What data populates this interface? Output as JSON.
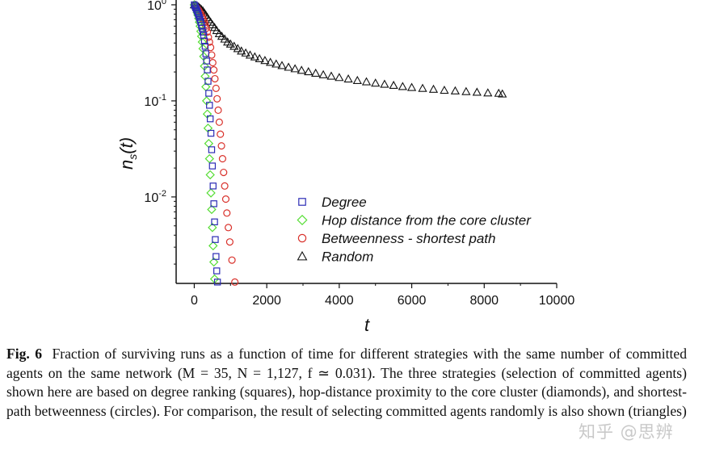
{
  "chart_data": {
    "type": "scatter",
    "xlabel": "t",
    "ylabel": "n_s(t)",
    "xlim": [
      -500,
      10000
    ],
    "ylim_log10": [
      -2.9,
      0.05
    ],
    "y_scale": "log",
    "x_ticks": [
      0,
      2000,
      4000,
      6000,
      8000,
      10000
    ],
    "y_ticks": [
      {
        "base": "10",
        "exp": "-2",
        "value": 0.01
      },
      {
        "base": "10",
        "exp": "-1",
        "value": 0.1
      },
      {
        "base": "10",
        "exp": "0",
        "value": 1
      }
    ],
    "legend_position": "lower-right",
    "series": [
      {
        "name": "Degree",
        "marker": "square",
        "color": "#2b2bb5",
        "points": [
          [
            0,
            1
          ],
          [
            20,
            0.97
          ],
          [
            40,
            0.93
          ],
          [
            60,
            0.9
          ],
          [
            80,
            0.86
          ],
          [
            100,
            0.82
          ],
          [
            120,
            0.78
          ],
          [
            140,
            0.74
          ],
          [
            160,
            0.7
          ],
          [
            180,
            0.66
          ],
          [
            200,
            0.61
          ],
          [
            220,
            0.57
          ],
          [
            240,
            0.52
          ],
          [
            260,
            0.48
          ],
          [
            280,
            0.42
          ],
          [
            300,
            0.37
          ],
          [
            320,
            0.31
          ],
          [
            340,
            0.26
          ],
          [
            360,
            0.21
          ],
          [
            380,
            0.16
          ],
          [
            400,
            0.12
          ],
          [
            420,
            0.09
          ],
          [
            440,
            0.065
          ],
          [
            460,
            0.046
          ],
          [
            480,
            0.031
          ],
          [
            500,
            0.021
          ],
          [
            520,
            0.013
          ],
          [
            540,
            0.0085
          ],
          [
            560,
            0.0055
          ],
          [
            580,
            0.0036
          ],
          [
            600,
            0.0024
          ],
          [
            620,
            0.0017
          ],
          [
            640,
            0.0013
          ]
        ]
      },
      {
        "name": "Hop distance from the core cluster",
        "marker": "diamond",
        "color": "#55dd33",
        "points": [
          [
            0,
            1
          ],
          [
            20,
            0.96
          ],
          [
            40,
            0.92
          ],
          [
            60,
            0.88
          ],
          [
            80,
            0.83
          ],
          [
            100,
            0.78
          ],
          [
            120,
            0.72
          ],
          [
            140,
            0.66
          ],
          [
            160,
            0.6
          ],
          [
            180,
            0.53
          ],
          [
            200,
            0.47
          ],
          [
            220,
            0.41
          ],
          [
            240,
            0.35
          ],
          [
            260,
            0.29
          ],
          [
            280,
            0.23
          ],
          [
            300,
            0.18
          ],
          [
            320,
            0.14
          ],
          [
            340,
            0.1
          ],
          [
            360,
            0.073
          ],
          [
            380,
            0.052
          ],
          [
            400,
            0.036
          ],
          [
            420,
            0.025
          ],
          [
            440,
            0.017
          ],
          [
            460,
            0.011
          ],
          [
            480,
            0.0074
          ],
          [
            500,
            0.0048
          ],
          [
            520,
            0.0031
          ],
          [
            540,
            0.0021
          ],
          [
            560,
            0.0014
          ]
        ]
      },
      {
        "name": "Betweenness - shortest path",
        "marker": "circle",
        "color": "#d9312b",
        "points": [
          [
            0,
            1
          ],
          [
            30,
            0.97
          ],
          [
            60,
            0.94
          ],
          [
            90,
            0.91
          ],
          [
            120,
            0.88
          ],
          [
            150,
            0.84
          ],
          [
            180,
            0.8
          ],
          [
            210,
            0.76
          ],
          [
            240,
            0.72
          ],
          [
            270,
            0.67
          ],
          [
            300,
            0.62
          ],
          [
            330,
            0.57
          ],
          [
            360,
            0.52
          ],
          [
            390,
            0.46
          ],
          [
            420,
            0.41
          ],
          [
            450,
            0.36
          ],
          [
            480,
            0.3
          ],
          [
            510,
            0.25
          ],
          [
            540,
            0.21
          ],
          [
            570,
            0.17
          ],
          [
            600,
            0.135
          ],
          [
            630,
            0.105
          ],
          [
            660,
            0.08
          ],
          [
            690,
            0.06
          ],
          [
            720,
            0.045
          ],
          [
            750,
            0.034
          ],
          [
            780,
            0.025
          ],
          [
            810,
            0.018
          ],
          [
            840,
            0.013
          ],
          [
            870,
            0.0095
          ],
          [
            900,
            0.0068
          ],
          [
            940,
            0.0048
          ],
          [
            980,
            0.0034
          ],
          [
            1040,
            0.0022
          ],
          [
            1120,
            0.0013
          ]
        ]
      },
      {
        "name": "Random",
        "marker": "triangle",
        "color": "#111111",
        "points": [
          [
            0,
            1
          ],
          [
            40,
            0.99
          ],
          [
            80,
            0.97
          ],
          [
            120,
            0.95
          ],
          [
            160,
            0.92
          ],
          [
            200,
            0.89
          ],
          [
            240,
            0.86
          ],
          [
            280,
            0.82
          ],
          [
            320,
            0.78
          ],
          [
            360,
            0.74
          ],
          [
            400,
            0.7
          ],
          [
            450,
            0.66
          ],
          [
            500,
            0.62
          ],
          [
            560,
            0.58
          ],
          [
            620,
            0.54
          ],
          [
            690,
            0.5
          ],
          [
            760,
            0.47
          ],
          [
            840,
            0.44
          ],
          [
            920,
            0.41
          ],
          [
            1000,
            0.39
          ],
          [
            1100,
            0.37
          ],
          [
            1200,
            0.35
          ],
          [
            1300,
            0.33
          ],
          [
            1420,
            0.315
          ],
          [
            1540,
            0.3
          ],
          [
            1670,
            0.287
          ],
          [
            1800,
            0.275
          ],
          [
            1950,
            0.263
          ],
          [
            2100,
            0.252
          ],
          [
            2260,
            0.242
          ],
          [
            2420,
            0.233
          ],
          [
            2600,
            0.224
          ],
          [
            2780,
            0.216
          ],
          [
            2960,
            0.208
          ],
          [
            3150,
            0.201
          ],
          [
            3350,
            0.194
          ],
          [
            3560,
            0.187
          ],
          [
            3780,
            0.181
          ],
          [
            4000,
            0.175
          ],
          [
            4250,
            0.169
          ],
          [
            4500,
            0.163
          ],
          [
            4750,
            0.158
          ],
          [
            5000,
            0.153
          ],
          [
            5250,
            0.149
          ],
          [
            5500,
            0.145
          ],
          [
            5750,
            0.141
          ],
          [
            6000,
            0.138
          ],
          [
            6300,
            0.135
          ],
          [
            6600,
            0.132
          ],
          [
            6900,
            0.129
          ],
          [
            7200,
            0.127
          ],
          [
            7500,
            0.125
          ],
          [
            7800,
            0.123
          ],
          [
            8100,
            0.121
          ],
          [
            8400,
            0.12
          ],
          [
            8500,
            0.118
          ]
        ]
      }
    ]
  },
  "caption": {
    "label": "Fig. 6",
    "text": "Fraction of surviving runs as a function of time for different strategies with the same number of committed agents on the same network (M = 35, N = 1,127, f ≃ 0.031). The three strategies (selection of committed agents) shown here are based on degree ranking (squares), hop-distance proximity to the core cluster (diamonds), and shortest-path betweenness (circles). For comparison, the result of selecting committed agents randomly is also shown (triangles)"
  },
  "watermark": "知乎 @思辨",
  "colors": {
    "axis": "#111111",
    "degree": "#2b2bb5",
    "hop": "#55dd33",
    "betweenness": "#d9312b",
    "random": "#111111"
  }
}
